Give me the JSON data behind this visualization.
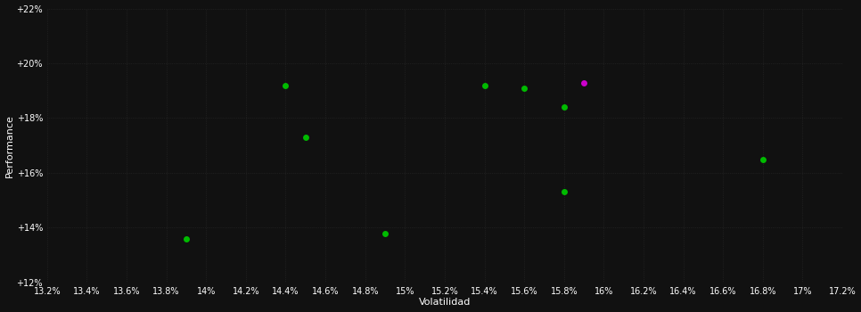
{
  "background_color": "#111111",
  "plot_bg_color": "#111111",
  "grid_color": "#2a2a2a",
  "text_color": "#ffffff",
  "xlabel": "Volatilidad",
  "ylabel": "Performance",
  "xlim": [
    0.132,
    0.172
  ],
  "ylim": [
    0.12,
    0.22
  ],
  "xticks": [
    0.132,
    0.134,
    0.136,
    0.138,
    0.14,
    0.142,
    0.144,
    0.146,
    0.148,
    0.15,
    0.152,
    0.154,
    0.156,
    0.158,
    0.16,
    0.162,
    0.164,
    0.166,
    0.168,
    0.17,
    0.172
  ],
  "xtick_labels": [
    "13.2%",
    "13.4%",
    "13.6%",
    "13.8%",
    "14%",
    "14.2%",
    "14.4%",
    "14.6%",
    "14.8%",
    "15%",
    "15.2%",
    "15.4%",
    "15.6%",
    "15.8%",
    "16%",
    "16.2%",
    "16.4%",
    "16.6%",
    "16.8%",
    "17%",
    "17.2%"
  ],
  "yticks": [
    0.12,
    0.14,
    0.16,
    0.18,
    0.2,
    0.22
  ],
  "ytick_labels": [
    "+12%",
    "+14%",
    "+16%",
    "+18%",
    "+20%",
    "+22%"
  ],
  "points_green": [
    [
      0.139,
      0.136
    ],
    [
      0.144,
      0.192
    ],
    [
      0.145,
      0.173
    ],
    [
      0.149,
      0.138
    ],
    [
      0.154,
      0.192
    ],
    [
      0.156,
      0.191
    ],
    [
      0.158,
      0.184
    ],
    [
      0.158,
      0.153
    ],
    [
      0.168,
      0.165
    ]
  ],
  "points_magenta": [
    [
      0.159,
      0.193
    ]
  ],
  "green_color": "#00bb00",
  "magenta_color": "#cc00cc",
  "marker_size": 5,
  "figsize": [
    9.66,
    3.5
  ],
  "dpi": 100
}
